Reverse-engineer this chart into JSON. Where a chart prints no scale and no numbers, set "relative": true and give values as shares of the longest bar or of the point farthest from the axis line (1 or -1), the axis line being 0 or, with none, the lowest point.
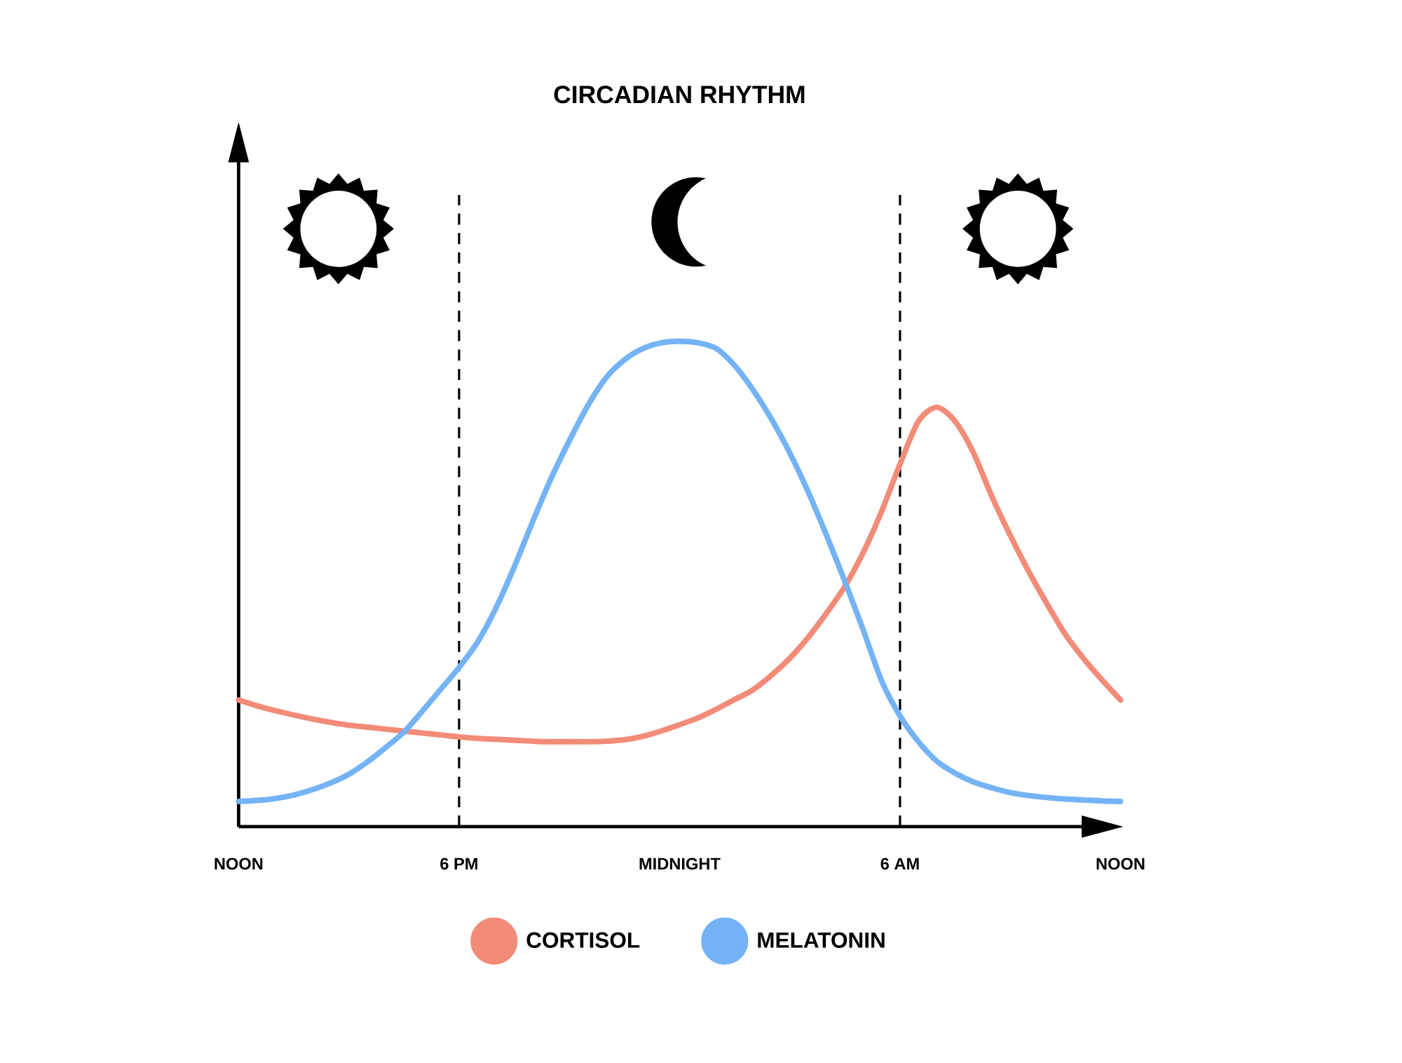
{
  "chart_data": {
    "type": "line",
    "title": "CIRCADIAN RHYTHM",
    "relative": true,
    "categories": [
      "NOON",
      null,
      null,
      null,
      null,
      null,
      null,
      null,
      null,
      null,
      null,
      null,
      "6 PM",
      null,
      null,
      null,
      null,
      null,
      null,
      null,
      null,
      null,
      null,
      null,
      "MIDNIGHT",
      null,
      null,
      null,
      null,
      null,
      null,
      null,
      null,
      null,
      null,
      null,
      "6 AM",
      null,
      null,
      null,
      null,
      null,
      null,
      null,
      null,
      null,
      null,
      null,
      "NOON"
    ],
    "series": [
      {
        "name": "CORTISOL",
        "color": "#f28b78",
        "values": [
          0.261,
          0.249,
          0.239,
          0.23,
          0.222,
          0.215,
          0.209,
          0.205,
          0.201,
          0.197,
          0.193,
          0.189,
          0.185,
          0.182,
          0.18,
          0.178,
          0.176,
          0.175,
          0.175,
          0.175,
          0.176,
          0.179,
          0.186,
          0.197,
          0.21,
          0.224,
          0.242,
          0.262,
          0.282,
          0.312,
          0.347,
          0.39,
          0.44,
          0.495,
          0.565,
          0.65,
          0.747,
          0.835,
          0.864,
          0.835,
          0.77,
          0.68,
          0.6,
          0.526,
          0.459,
          0.396,
          0.346,
          0.302,
          0.261
        ]
      },
      {
        "name": "MELATONIN",
        "color": "#74b3f5",
        "values": [
          0.052,
          0.054,
          0.058,
          0.065,
          0.076,
          0.09,
          0.108,
          0.133,
          0.163,
          0.195,
          0.238,
          0.283,
          0.328,
          0.38,
          0.45,
          0.535,
          0.628,
          0.717,
          0.795,
          0.867,
          0.925,
          0.962,
          0.985,
          0.997,
          1,
          0.997,
          0.985,
          0.95,
          0.9,
          0.84,
          0.77,
          0.69,
          0.6,
          0.505,
          0.405,
          0.3,
          0.228,
          0.175,
          0.135,
          0.11,
          0.092,
          0.08,
          0.07,
          0.064,
          0.06,
          0.057,
          0.055,
          0.053,
          0.052
        ]
      }
    ],
    "ref_lines": [
      {
        "axis": "x",
        "value": "6 PM",
        "line_style": "dashed",
        "color": "#000000"
      },
      {
        "axis": "x",
        "value": "6 AM",
        "line_style": "dashed",
        "color": "#000000"
      }
    ],
    "legend": "bottom"
  }
}
